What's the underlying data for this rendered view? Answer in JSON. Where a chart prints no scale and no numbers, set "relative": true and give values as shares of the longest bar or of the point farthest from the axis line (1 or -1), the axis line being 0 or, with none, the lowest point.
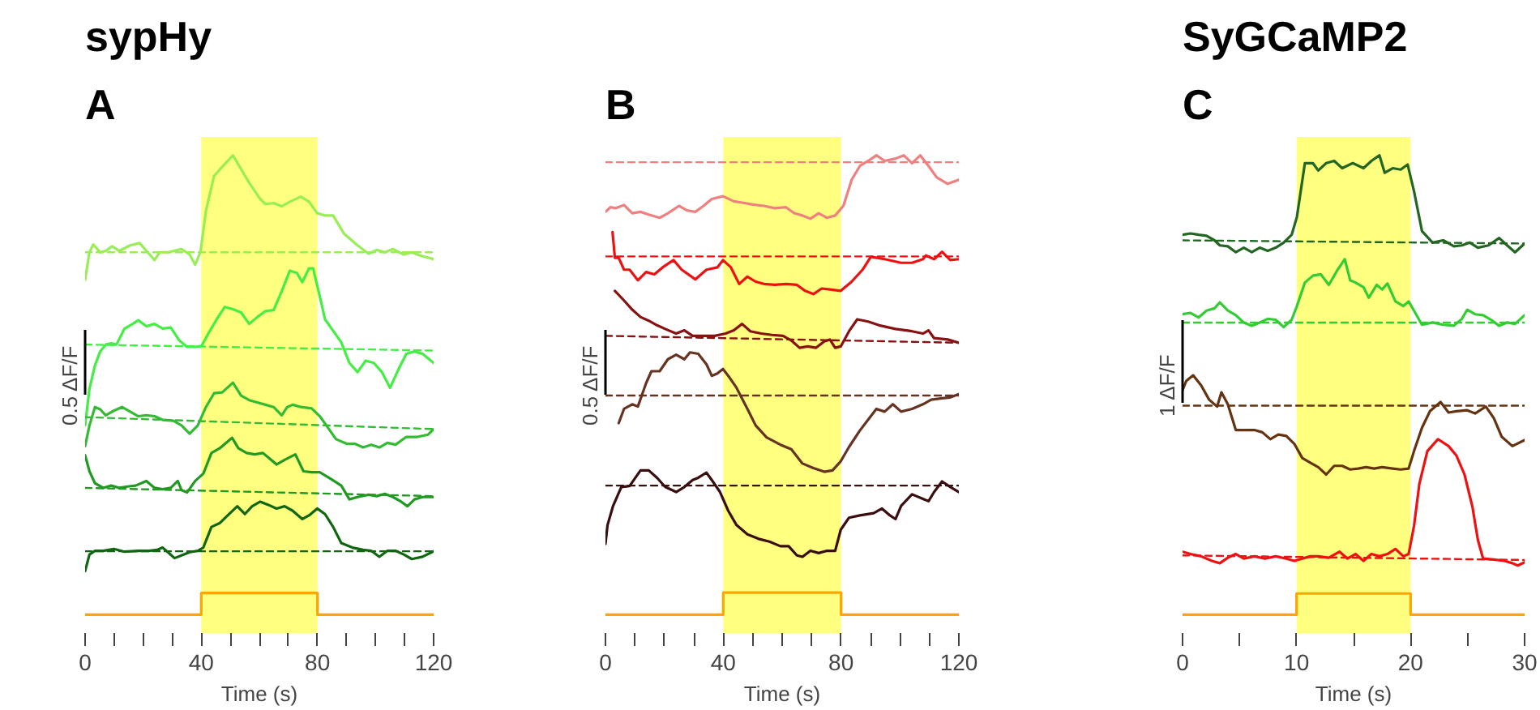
{
  "chart_data": [
    {
      "type": "line",
      "title": "A",
      "subtitle": "sypHy",
      "xlabel": "Time (s)",
      "ylabel": "0.5 ΔF/F",
      "relative": true,
      "grid": false,
      "tick_labels": "x",
      "xlim": [
        0,
        120
      ],
      "xticks": [
        0,
        {
          "value": 10,
          "label": null
        },
        {
          "value": 20,
          "label": null
        },
        {
          "value": 30,
          "label": null
        },
        40,
        {
          "value": 50,
          "label": null
        },
        {
          "value": 60,
          "label": null
        },
        {
          "value": 70,
          "label": null
        },
        80,
        {
          "value": 90,
          "label": null
        },
        {
          "value": 100,
          "label": null
        },
        {
          "value": 110,
          "label": null
        },
        120
      ],
      "bands": [
        {
          "axis": "x",
          "from": 40,
          "to": 80,
          "color": "#ffff80"
        }
      ],
      "series": [
        {
          "color": "#99ee55",
          "x": [
            0,
            1.5,
            2.8,
            5.2,
            7.1,
            9.3,
            11.8,
            15.5,
            18.8,
            21.1,
            23.9,
            25.7,
            28.5,
            33.2,
            36.0,
            37.9,
            39.7,
            41.6,
            44.4,
            47.2,
            50.9,
            53.7,
            56.5,
            60.3,
            62.1,
            64.9,
            67.7,
            70.5,
            74.3,
            77.1,
            79.9,
            82.6,
            85.4,
            89.2,
            93.8,
            97.6,
            100.4,
            103.2,
            106.0,
            109.7,
            112.5,
            115.3,
            120
          ],
          "values": [
            0.729,
            0.789,
            0.806,
            0.789,
            0.792,
            0.802,
            0.792,
            0.804,
            0.809,
            0.792,
            0.772,
            0.789,
            0.789,
            0.796,
            0.784,
            0.762,
            0.789,
            0.879,
            0.955,
            0.975,
            1.0,
            0.97,
            0.94,
            0.905,
            0.894,
            0.896,
            0.889,
            0.899,
            0.91,
            0.899,
            0.874,
            0.869,
            0.869,
            0.829,
            0.804,
            0.786,
            0.794,
            0.789,
            0.796,
            0.784,
            0.789,
            0.782,
            0.774
          ]
        },
        {
          "color": "#99ee55",
          "line_style": "dashed",
          "x": [
            0,
            120
          ],
          "values": [
            0.789,
            0.789
          ]
        },
        {
          "color": "#44ee44",
          "x": [
            0,
            1.5,
            3.4,
            5.2,
            7.1,
            9.0,
            10.8,
            13.6,
            16.4,
            18.3,
            21.1,
            23.9,
            26.7,
            29.5,
            32.3,
            35.1,
            37.9,
            40.1,
            42.5,
            45.3,
            48.1,
            50.9,
            53.7,
            56.5,
            59.3,
            62.1,
            64.9,
            67.7,
            70.5,
            72.9,
            74.8,
            77.1,
            78.5,
            80.8,
            82.6,
            85.4,
            88.2,
            91.0,
            93.8,
            96.6,
            99.4,
            102.2,
            105.0,
            107.8,
            110.6,
            113.4,
            116.2,
            120
          ],
          "values": [
            0.412,
            0.492,
            0.543,
            0.573,
            0.588,
            0.591,
            0.588,
            0.623,
            0.633,
            0.641,
            0.628,
            0.633,
            0.623,
            0.625,
            0.598,
            0.583,
            0.583,
            0.585,
            0.613,
            0.643,
            0.67,
            0.665,
            0.658,
            0.633,
            0.648,
            0.661,
            0.663,
            0.704,
            0.749,
            0.744,
            0.724,
            0.754,
            0.754,
            0.693,
            0.643,
            0.618,
            0.593,
            0.548,
            0.528,
            0.553,
            0.548,
            0.528,
            0.494,
            0.533,
            0.568,
            0.573,
            0.568,
            0.548
          ]
        },
        {
          "color": "#44ee44",
          "line_style": "dashed",
          "x": [
            0,
            120
          ],
          "values": [
            0.588,
            0.575
          ]
        },
        {
          "color": "#33bb33",
          "x": [
            0,
            1.5,
            3.4,
            5.2,
            7.1,
            9.9,
            12.7,
            15.5,
            18.3,
            21.1,
            23.9,
            26.7,
            30.4,
            33.2,
            36.0,
            38.8,
            41.6,
            44.4,
            47.2,
            50.9,
            53.7,
            56.5,
            59.3,
            62.1,
            64.9,
            67.7,
            69.6,
            71.5,
            74.3,
            78.0,
            80.8,
            83.6,
            86.4,
            90.1,
            92.9,
            95.7,
            98.5,
            101.3,
            104.1,
            106.9,
            110.6,
            114.4,
            118.1,
            120
          ],
          "values": [
            0.367,
            0.412,
            0.452,
            0.447,
            0.434,
            0.444,
            0.452,
            0.442,
            0.432,
            0.434,
            0.432,
            0.424,
            0.422,
            0.412,
            0.394,
            0.412,
            0.452,
            0.482,
            0.484,
            0.505,
            0.477,
            0.467,
            0.462,
            0.457,
            0.452,
            0.434,
            0.452,
            0.457,
            0.452,
            0.449,
            0.432,
            0.407,
            0.382,
            0.372,
            0.372,
            0.364,
            0.37,
            0.364,
            0.374,
            0.37,
            0.387,
            0.387,
            0.392,
            0.404
          ]
        },
        {
          "color": "#33bb33",
          "line_style": "dashed",
          "x": [
            0,
            120
          ],
          "values": [
            0.43,
            0.404
          ]
        },
        {
          "color": "#229922",
          "x": [
            0,
            1.5,
            3.4,
            6.2,
            9.0,
            11.8,
            14.6,
            17.4,
            21.1,
            23.9,
            26.7,
            29.5,
            31.9,
            33.2,
            35.1,
            37.9,
            40.7,
            43.5,
            46.3,
            49.1,
            50.6,
            52.8,
            55.6,
            58.4,
            61.2,
            63.1,
            65.9,
            68.7,
            72.4,
            75.2,
            78.0,
            80.8,
            84.5,
            88.2,
            91.0,
            93.8,
            97.6,
            100.4,
            103.2,
            106.0,
            108.8,
            111.0,
            113.4,
            116.2,
            120
          ],
          "values": [
            0.347,
            0.312,
            0.286,
            0.276,
            0.281,
            0.276,
            0.279,
            0.281,
            0.291,
            0.276,
            0.273,
            0.276,
            0.291,
            0.271,
            0.266,
            0.291,
            0.307,
            0.352,
            0.362,
            0.377,
            0.385,
            0.362,
            0.352,
            0.349,
            0.352,
            0.342,
            0.327,
            0.337,
            0.349,
            0.312,
            0.31,
            0.31,
            0.296,
            0.281,
            0.251,
            0.256,
            0.261,
            0.258,
            0.263,
            0.256,
            0.246,
            0.236,
            0.251,
            0.256,
            0.256
          ]
        },
        {
          "color": "#229922",
          "line_style": "dashed",
          "x": [
            0,
            120
          ],
          "values": [
            0.276,
            0.258
          ]
        },
        {
          "color": "#116611",
          "x": [
            0,
            1.5,
            3.4,
            6.2,
            9.9,
            13.6,
            18.3,
            22.0,
            24.8,
            26.7,
            28.5,
            30.8,
            33.2,
            36.0,
            38.8,
            40.7,
            43.5,
            46.3,
            49.1,
            52.4,
            55.0,
            57.5,
            60.3,
            63.1,
            65.9,
            68.7,
            71.5,
            74.8,
            77.1,
            79.9,
            82.6,
            85.4,
            88.2,
            92.0,
            95.7,
            98.5,
            101.3,
            104.1,
            106.9,
            109.7,
            112.5,
            116.2,
            120
          ],
          "values": [
            0.095,
            0.131,
            0.139,
            0.139,
            0.143,
            0.137,
            0.139,
            0.139,
            0.141,
            0.146,
            0.136,
            0.123,
            0.129,
            0.136,
            0.139,
            0.146,
            0.191,
            0.199,
            0.216,
            0.236,
            0.219,
            0.236,
            0.246,
            0.239,
            0.231,
            0.236,
            0.226,
            0.208,
            0.216,
            0.231,
            0.219,
            0.191,
            0.156,
            0.146,
            0.141,
            0.139,
            0.126,
            0.139,
            0.139,
            0.131,
            0.121,
            0.126,
            0.138
          ]
        },
        {
          "color": "#116611",
          "line_style": "dashed",
          "x": [
            0,
            120
          ],
          "values": [
            0.138,
            0.138
          ]
        },
        {
          "color": "#ffa500",
          "x": [
            0,
            40,
            40,
            80,
            80,
            120
          ],
          "values": [
            0,
            0,
            0.047,
            0.047,
            0,
            0
          ]
        }
      ]
    },
    {
      "type": "line",
      "title": "B",
      "xlabel": "Time (s)",
      "ylabel": "0.5 ΔF/F",
      "relative": true,
      "grid": false,
      "tick_labels": "x",
      "xlim": [
        0,
        120
      ],
      "xticks": [
        0,
        {
          "value": 10,
          "label": null
        },
        {
          "value": 20,
          "label": null
        },
        {
          "value": 30,
          "label": null
        },
        40,
        {
          "value": 50,
          "label": null
        },
        {
          "value": 60,
          "label": null
        },
        {
          "value": 70,
          "label": null
        },
        80,
        {
          "value": 90,
          "label": null
        },
        {
          "value": 100,
          "label": null
        },
        {
          "value": 110,
          "label": null
        },
        120
      ],
      "bands": [
        {
          "axis": "x",
          "from": 40,
          "to": 80,
          "color": "#ffff80"
        }
      ],
      "series": [
        {
          "color": "#f08080",
          "x": [
            0,
            1.7,
            3.5,
            6.3,
            9.1,
            11.9,
            14.7,
            18.4,
            21.2,
            25.0,
            27.7,
            30.5,
            33.3,
            36.1,
            39.9,
            43.6,
            46.4,
            50.1,
            53.8,
            57.5,
            61.3,
            64.1,
            66.9,
            69.6,
            72.4,
            75.2,
            78.0,
            80.8,
            83.6,
            86.4,
            89.2,
            92.0,
            94.8,
            98.5,
            101.3,
            104.1,
            106.9,
            109.7,
            112.5,
            116.2,
            120
          ],
          "values": [
            0.877,
            0.887,
            0.885,
            0.892,
            0.874,
            0.877,
            0.871,
            0.864,
            0.874,
            0.89,
            0.88,
            0.877,
            0.89,
            0.905,
            0.911,
            0.9,
            0.897,
            0.893,
            0.89,
            0.885,
            0.887,
            0.874,
            0.869,
            0.862,
            0.874,
            0.864,
            0.869,
            0.89,
            0.947,
            0.977,
            0.988,
            1.0,
            0.988,
            0.993,
            1.0,
            0.983,
            1.0,
            0.977,
            0.952,
            0.938,
            0.947
          ]
        },
        {
          "color": "#f08080",
          "line_style": "dashed",
          "x": [
            0,
            120
          ],
          "values": [
            0.985,
            0.985
          ]
        },
        {
          "color": "#ee1111",
          "x": [
            2.4,
            3.2,
            4.5,
            6.3,
            8.2,
            11.0,
            13.8,
            16.6,
            19.4,
            23.1,
            25.9,
            30.5,
            34.3,
            38.0,
            39.9,
            42.6,
            45.4,
            48.2,
            51.0,
            53.8,
            57.5,
            61.3,
            65.0,
            67.8,
            70.6,
            73.4,
            76.2,
            79.9,
            83.6,
            87.3,
            90.1,
            94.8,
            100.4,
            104.1,
            107.8,
            108.8,
            111.6,
            114.3,
            117.1,
            120
          ],
          "values": [
            0.833,
            0.777,
            0.777,
            0.751,
            0.751,
            0.728,
            0.746,
            0.741,
            0.756,
            0.772,
            0.751,
            0.73,
            0.751,
            0.756,
            0.772,
            0.756,
            0.72,
            0.736,
            0.725,
            0.72,
            0.718,
            0.72,
            0.718,
            0.705,
            0.698,
            0.71,
            0.708,
            0.705,
            0.725,
            0.751,
            0.779,
            0.774,
            0.766,
            0.766,
            0.774,
            0.782,
            0.774,
            0.79,
            0.772,
            0.774
          ]
        },
        {
          "color": "#ee1111",
          "line_style": "dashed",
          "x": [
            0,
            120
          ],
          "values": [
            0.78,
            0.78
          ]
        },
        {
          "color": "#881111",
          "x": [
            3.2,
            6.3,
            9.1,
            11.9,
            14.7,
            17.5,
            20.3,
            24.0,
            26.8,
            29.6,
            33.3,
            37.1,
            40.8,
            43.6,
            46.4,
            49.2,
            52.9,
            56.6,
            60.3,
            63.1,
            65.9,
            68.7,
            71.5,
            74.3,
            76.2,
            78.0,
            79.9,
            82.7,
            85.5,
            89.2,
            92.9,
            98.5,
            104.1,
            107.8,
            109.7,
            111.6,
            116.2,
            120
          ],
          "values": [
            0.705,
            0.684,
            0.664,
            0.648,
            0.64,
            0.63,
            0.622,
            0.612,
            0.619,
            0.607,
            0.607,
            0.607,
            0.612,
            0.619,
            0.633,
            0.617,
            0.612,
            0.609,
            0.607,
            0.597,
            0.581,
            0.584,
            0.581,
            0.595,
            0.599,
            0.581,
            0.584,
            0.617,
            0.643,
            0.638,
            0.63,
            0.622,
            0.617,
            0.612,
            0.619,
            0.602,
            0.599,
            0.592
          ]
        },
        {
          "color": "#881111",
          "line_style": "dashed",
          "x": [
            0,
            120
          ],
          "values": [
            0.607,
            0.592
          ]
        },
        {
          "color": "#663322",
          "x": [
            4.5,
            6.3,
            9.1,
            11.0,
            13.8,
            15.6,
            18.4,
            21.2,
            24.0,
            26.8,
            28.7,
            31.5,
            34.3,
            36.1,
            38.0,
            39.9,
            41.7,
            44.5,
            48.2,
            51.0,
            54.7,
            59.4,
            63.1,
            66.9,
            70.6,
            74.3,
            77.1,
            79.9,
            82.7,
            86.4,
            90.1,
            92.0,
            94.8,
            97.6,
            100.4,
            104.1,
            107.8,
            110.6,
            114.3,
            117.1,
            120
          ],
          "values": [
            0.417,
            0.448,
            0.458,
            0.453,
            0.504,
            0.53,
            0.53,
            0.556,
            0.566,
            0.556,
            0.571,
            0.568,
            0.545,
            0.52,
            0.525,
            0.535,
            0.52,
            0.494,
            0.448,
            0.412,
            0.386,
            0.37,
            0.36,
            0.329,
            0.319,
            0.311,
            0.314,
            0.334,
            0.365,
            0.401,
            0.432,
            0.448,
            0.442,
            0.458,
            0.442,
            0.448,
            0.458,
            0.468,
            0.471,
            0.473,
            0.48
          ]
        },
        {
          "color": "#663322",
          "line_style": "dashed",
          "x": [
            0,
            120
          ],
          "values": [
            0.477,
            0.477
          ]
        },
        {
          "color": "#3a0e0e",
          "x": [
            0,
            0.7,
            2.6,
            5.4,
            8.2,
            11.9,
            14.7,
            17.5,
            20.3,
            24.0,
            26.8,
            29.6,
            31.5,
            34.3,
            36.1,
            38.9,
            41.7,
            44.5,
            48.2,
            52.0,
            55.7,
            59.4,
            62.2,
            65.0,
            66.9,
            69.6,
            72.4,
            75.2,
            78.0,
            79.9,
            82.7,
            86.4,
            91.1,
            93.9,
            96.6,
            98.5,
            100.4,
            104.1,
            107.8,
            109.7,
            111.6,
            114.3,
            117.1,
            120
          ],
          "values": [
            0.154,
            0.195,
            0.237,
            0.278,
            0.28,
            0.314,
            0.314,
            0.298,
            0.278,
            0.267,
            0.278,
            0.293,
            0.298,
            0.309,
            0.293,
            0.267,
            0.226,
            0.195,
            0.175,
            0.165,
            0.159,
            0.149,
            0.149,
            0.129,
            0.126,
            0.139,
            0.134,
            0.139,
            0.139,
            0.185,
            0.211,
            0.216,
            0.221,
            0.231,
            0.216,
            0.208,
            0.237,
            0.262,
            0.252,
            0.247,
            0.267,
            0.29,
            0.278,
            0.267
          ]
        },
        {
          "color": "#3a0e0e",
          "line_style": "dashed",
          "x": [
            0,
            120
          ],
          "values": [
            0.281,
            0.281
          ]
        },
        {
          "color": "#ffa500",
          "x": [
            0,
            40,
            40,
            80,
            80,
            120
          ],
          "values": [
            0,
            0,
            0.048,
            0.048,
            0,
            0
          ]
        }
      ]
    },
    {
      "type": "line",
      "title": "C",
      "subtitle": "SyGCaMP2",
      "xlabel": "Time (s)",
      "ylabel": "1 ΔF/F",
      "relative": true,
      "grid": false,
      "tick_labels": "x",
      "xlim": [
        0,
        30
      ],
      "xticks": [
        0,
        {
          "value": 5,
          "label": null
        },
        10,
        {
          "value": 15,
          "label": null
        },
        20,
        {
          "value": 25,
          "label": null
        },
        30
      ],
      "bands": [
        {
          "axis": "x",
          "from": 10,
          "to": 20,
          "color": "#ffff80"
        }
      ],
      "series": [
        {
          "color": "#226622",
          "x": [
            0,
            0.7,
            1.4,
            2.1,
            2.8,
            3.27,
            3.97,
            4.67,
            5.37,
            6.07,
            6.77,
            7.47,
            8.17,
            8.87,
            9.57,
            10.03,
            10.73,
            11.43,
            11.9,
            12.6,
            13.3,
            14.0,
            14.93,
            15.87,
            16.57,
            17.27,
            17.73,
            18.43,
            19.13,
            19.74,
            20.3,
            21.0,
            21.93,
            22.87,
            23.8,
            24.5,
            25.2,
            25.9,
            26.83,
            27.77,
            28.47,
            29.16,
            30
          ],
          "values": [
            0.827,
            0.83,
            0.827,
            0.825,
            0.815,
            0.804,
            0.802,
            0.789,
            0.799,
            0.789,
            0.799,
            0.792,
            0.799,
            0.81,
            0.827,
            0.866,
            0.983,
            0.983,
            0.967,
            0.983,
            0.988,
            0.972,
            0.983,
            0.972,
            0.988,
            1.0,
            0.962,
            0.972,
            0.969,
            0.98,
            0.922,
            0.835,
            0.81,
            0.815,
            0.802,
            0.804,
            0.81,
            0.799,
            0.804,
            0.82,
            0.804,
            0.789,
            0.808
          ]
        },
        {
          "color": "#226622",
          "line_style": "dashed",
          "x": [
            0,
            30
          ],
          "values": [
            0.815,
            0.808
          ]
        },
        {
          "color": "#33cc33",
          "x": [
            0,
            0.7,
            1.4,
            2.1,
            2.8,
            3.27,
            3.97,
            4.67,
            5.37,
            6.07,
            6.77,
            7.47,
            8.17,
            8.87,
            9.57,
            10.03,
            10.73,
            11.43,
            12.13,
            12.83,
            13.53,
            14.23,
            14.7,
            15.17,
            15.87,
            16.33,
            17.03,
            17.5,
            17.97,
            18.67,
            19.37,
            19.83,
            20.3,
            21.0,
            21.93,
            22.87,
            23.8,
            24.5,
            24.97,
            25.66,
            26.36,
            27.06,
            27.76,
            28.46,
            29.16,
            30
          ],
          "values": [
            0.654,
            0.657,
            0.647,
            0.662,
            0.667,
            0.68,
            0.662,
            0.652,
            0.636,
            0.629,
            0.636,
            0.644,
            0.642,
            0.626,
            0.642,
            0.672,
            0.723,
            0.738,
            0.741,
            0.718,
            0.748,
            0.774,
            0.728,
            0.723,
            0.713,
            0.69,
            0.718,
            0.708,
            0.721,
            0.682,
            0.672,
            0.682,
            0.662,
            0.631,
            0.636,
            0.631,
            0.629,
            0.644,
            0.664,
            0.654,
            0.652,
            0.642,
            0.629,
            0.636,
            0.633,
            0.652
          ]
        },
        {
          "color": "#33cc33",
          "line_style": "dashed",
          "x": [
            0,
            30
          ],
          "values": [
            0.636,
            0.636
          ]
        },
        {
          "color": "#663311",
          "x": [
            0,
            0.33,
            0.93,
            1.63,
            2.33,
            3.03,
            3.41,
            3.97,
            4.67,
            5.37,
            6.3,
            7.0,
            7.7,
            8.4,
            9.1,
            9.8,
            10.5,
            11.2,
            11.9,
            12.6,
            13.3,
            14.0,
            14.7,
            15.4,
            16.1,
            16.8,
            17.5,
            18.43,
            19.13,
            19.83,
            20.3,
            21.0,
            21.7,
            22.63,
            23.33,
            24.03,
            24.97,
            25.66,
            26.6,
            27.3,
            28.0,
            28.93,
            30
          ],
          "values": [
            0.489,
            0.509,
            0.521,
            0.499,
            0.468,
            0.453,
            0.484,
            0.458,
            0.402,
            0.402,
            0.402,
            0.397,
            0.382,
            0.392,
            0.389,
            0.372,
            0.341,
            0.331,
            0.321,
            0.305,
            0.324,
            0.324,
            0.316,
            0.318,
            0.321,
            0.318,
            0.321,
            0.318,
            0.316,
            0.318,
            0.356,
            0.407,
            0.443,
            0.463,
            0.44,
            0.443,
            0.445,
            0.438,
            0.453,
            0.428,
            0.387,
            0.367,
            0.38
          ]
        },
        {
          "color": "#663311",
          "line_style": "dashed",
          "x": [
            0,
            30
          ],
          "values": [
            0.455,
            0.455
          ]
        },
        {
          "color": "#ee1111",
          "x": [
            0,
            0.7,
            1.63,
            2.57,
            3.27,
            3.97,
            4.67,
            5.37,
            6.3,
            7.23,
            8.17,
            9.1,
            9.8,
            10.5,
            11.2,
            11.9,
            12.83,
            13.77,
            14.47,
            15.17,
            15.87,
            16.57,
            17.27,
            17.97,
            18.67,
            19.37,
            19.83,
            20.3,
            20.77,
            21.47,
            22.4,
            23.33,
            24.03,
            24.73,
            25.43,
            25.9,
            26.36,
            27.3,
            28.23,
            28.93,
            29.4,
            30
          ],
          "values": [
            0.137,
            0.132,
            0.127,
            0.117,
            0.112,
            0.124,
            0.132,
            0.122,
            0.127,
            0.122,
            0.127,
            0.122,
            0.117,
            0.122,
            0.127,
            0.127,
            0.124,
            0.137,
            0.122,
            0.132,
            0.117,
            0.132,
            0.127,
            0.132,
            0.143,
            0.127,
            0.132,
            0.193,
            0.285,
            0.356,
            0.382,
            0.367,
            0.346,
            0.305,
            0.234,
            0.163,
            0.122,
            0.12,
            0.117,
            0.112,
            0.107,
            0.114
          ]
        },
        {
          "color": "#ee1111",
          "line_style": "dashed",
          "x": [
            0,
            30
          ],
          "values": [
            0.129,
            0.119
          ]
        },
        {
          "color": "#ffa500",
          "x": [
            0,
            10,
            10,
            20,
            20,
            30
          ],
          "values": [
            0,
            0,
            0.046,
            0.046,
            0,
            0
          ]
        }
      ]
    }
  ]
}
